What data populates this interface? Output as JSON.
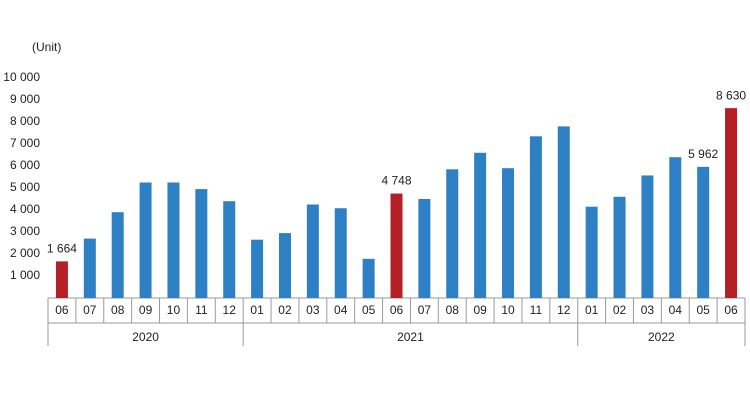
{
  "chart_data": {
    "type": "bar",
    "unit_label": "(Unit)",
    "groups": [
      {
        "name": "2020",
        "categories": [
          "06",
          "07",
          "08",
          "09",
          "10",
          "11",
          "12"
        ]
      },
      {
        "name": "2021",
        "categories": [
          "01",
          "02",
          "03",
          "04",
          "05",
          "06",
          "07",
          "08",
          "09",
          "10",
          "11",
          "12"
        ]
      },
      {
        "name": "2022",
        "categories": [
          "01",
          "02",
          "03",
          "04",
          "05",
          "06"
        ]
      }
    ],
    "values": [
      1664,
      2700,
      3900,
      5250,
      5250,
      4950,
      4400,
      2650,
      2950,
      4250,
      4080,
      1780,
      4748,
      4500,
      5850,
      6600,
      5900,
      7350,
      7800,
      4150,
      4600,
      5570,
      6400,
      5962,
      8630
    ],
    "value_labels": [
      "1 664",
      null,
      null,
      null,
      null,
      null,
      null,
      null,
      null,
      null,
      null,
      null,
      "4 748",
      null,
      null,
      null,
      null,
      null,
      null,
      null,
      null,
      null,
      null,
      "5 962",
      "8 630"
    ],
    "colors": [
      "#b42025",
      "#2e80c4",
      "#2e80c4",
      "#2e80c4",
      "#2e80c4",
      "#2e80c4",
      "#2e80c4",
      "#2e80c4",
      "#2e80c4",
      "#2e80c4",
      "#2e80c4",
      "#2e80c4",
      "#b42025",
      "#2e80c4",
      "#2e80c4",
      "#2e80c4",
      "#2e80c4",
      "#2e80c4",
      "#2e80c4",
      "#2e80c4",
      "#2e80c4",
      "#2e80c4",
      "#2e80c4",
      "#2e80c4",
      "#b42025"
    ],
    "ylim": [
      0,
      10000
    ],
    "yticks": [
      {
        "value": 1000,
        "label": "1 000"
      },
      {
        "value": 2000,
        "label": "2 000"
      },
      {
        "value": 3000,
        "label": "3 000"
      },
      {
        "value": 4000,
        "label": "4 000"
      },
      {
        "value": 5000,
        "label": "5 000"
      },
      {
        "value": 6000,
        "label": "6 000"
      },
      {
        "value": 7000,
        "label": "7 000"
      },
      {
        "value": 8000,
        "label": "8 000"
      },
      {
        "value": 9000,
        "label": "9 000"
      },
      {
        "value": 10000,
        "label": "10 000"
      }
    ],
    "grid": false
  }
}
